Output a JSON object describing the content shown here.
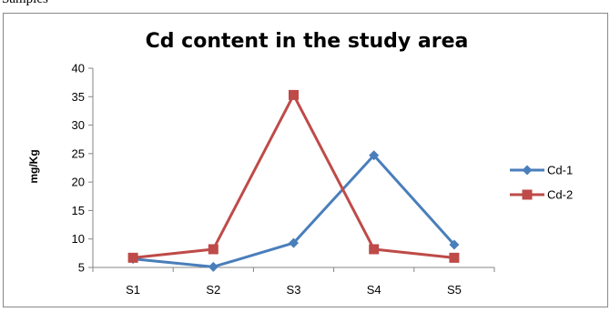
{
  "page": {
    "top_text": "Samples"
  },
  "chart_data": {
    "type": "line",
    "title": "Cd content in the study area",
    "xlabel": "",
    "ylabel": "mg/Kg",
    "categories": [
      "S1",
      "S2",
      "S3",
      "S4",
      "S5"
    ],
    "ylim": [
      5,
      40
    ],
    "yticks": [
      5,
      10,
      15,
      20,
      25,
      30,
      35,
      40
    ],
    "grid": false,
    "legend_position": "right",
    "series": [
      {
        "name": "Cd-1",
        "values": [
          6.5,
          5.1,
          9.3,
          24.7,
          9.0
        ],
        "color": "#4a7ebb",
        "marker": "diamond"
      },
      {
        "name": "Cd-2",
        "values": [
          6.7,
          8.2,
          35.3,
          8.2,
          6.7
        ],
        "color": "#be4b48",
        "marker": "square"
      }
    ]
  }
}
